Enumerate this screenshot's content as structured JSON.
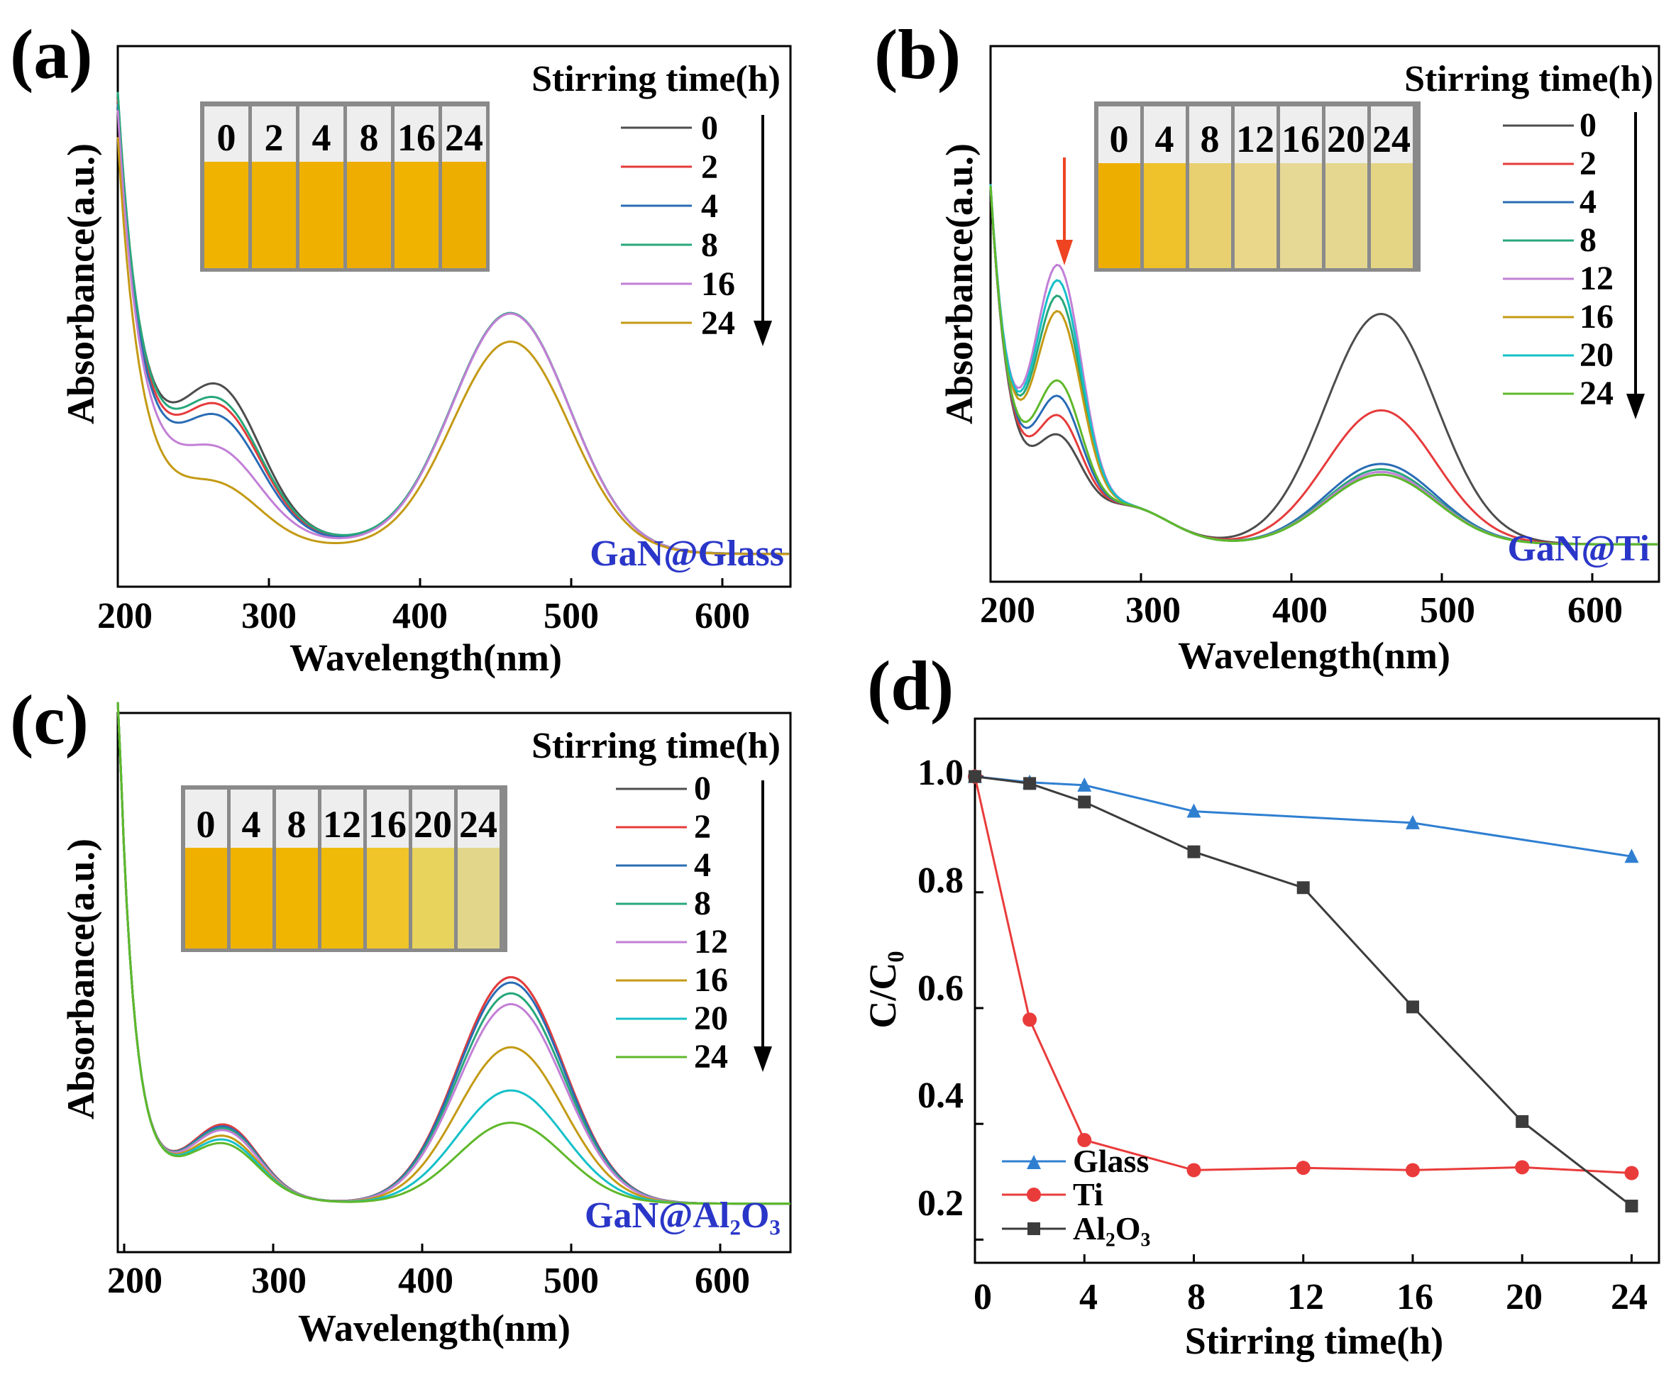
{
  "chart_data": [
    {
      "id": "a",
      "type": "line",
      "panel_label": "(a)",
      "xlabel": "Wavelength(nm)",
      "ylabel": "Absorbance(a.u.)",
      "xlim": [
        200,
        645
      ],
      "xticks": [
        "200",
        "300",
        "400",
        "500",
        "600"
      ],
      "legend_title": "Stirring time(h)",
      "sample_label": "GaN@Glass",
      "vial_labels": [
        "0",
        "2",
        "4",
        "8",
        "16",
        "24"
      ],
      "vial_colors": [
        "#f0b400",
        "#efb200",
        "#f0b000",
        "#eead00",
        "#efb300",
        "#eeae00"
      ],
      "series": [
        {
          "name": "0",
          "color": "#4d4d4d",
          "shoulder": 0.43,
          "trough": 0.185,
          "peak": 0.5
        },
        {
          "name": "2",
          "color": "#e63b3b",
          "shoulder": 0.37,
          "trough": 0.175,
          "peak": 0.5
        },
        {
          "name": "4",
          "color": "#2a6cb5",
          "shoulder": 0.34,
          "trough": 0.165,
          "peak": 0.5
        },
        {
          "name": "8",
          "color": "#27a77a",
          "shoulder": 0.38,
          "trough": 0.19,
          "peak": 0.5
        },
        {
          "name": "16",
          "color": "#c27fd6",
          "shoulder": 0.24,
          "trough": 0.155,
          "peak": 0.5
        },
        {
          "name": "24",
          "color": "#c49a14",
          "shoulder": 0.16,
          "trough": 0.1,
          "peak": 0.45
        }
      ]
    },
    {
      "id": "b",
      "type": "line",
      "panel_label": "(b)",
      "xlabel": "Wavelength(nm)",
      "ylabel": "Absorbance(a.u.)",
      "xlim": [
        200,
        645
      ],
      "xticks": [
        "200",
        "300",
        "400",
        "500",
        "600"
      ],
      "legend_title": "Stirring time(h)",
      "sample_label": "GaN@Ti",
      "vial_labels": [
        "0",
        "4",
        "8",
        "12",
        "16",
        "20",
        "24"
      ],
      "vial_colors": [
        "#eeae00",
        "#efc12a",
        "#e8d070",
        "#ead78a",
        "#e6d895",
        "#e5d78f",
        "#e4d585"
      ],
      "series": [
        {
          "name": "0",
          "color": "#4d4d4d",
          "uv": 0.22,
          "peak": 0.43
        },
        {
          "name": "2",
          "color": "#e63b3b",
          "uv": 0.27,
          "peak": 0.25
        },
        {
          "name": "4",
          "color": "#2a6cb5",
          "uv": 0.32,
          "peak": 0.15
        },
        {
          "name": "8",
          "color": "#27a77a",
          "uv": 0.58,
          "peak": 0.14
        },
        {
          "name": "12",
          "color": "#c27fd6",
          "uv": 0.66,
          "peak": 0.135
        },
        {
          "name": "16",
          "color": "#c49a14",
          "uv": 0.54,
          "peak": 0.13
        },
        {
          "name": "20",
          "color": "#14c0c8",
          "uv": 0.62,
          "peak": 0.13
        },
        {
          "name": "24",
          "color": "#5fb82a",
          "uv": 0.36,
          "peak": 0.13
        }
      ]
    },
    {
      "id": "c",
      "type": "line",
      "panel_label": "(c)",
      "xlabel": "Wavelength(nm)",
      "ylabel": "Absorbance(a.u.)",
      "xlim": [
        195,
        645
      ],
      "xticks": [
        "200",
        "300",
        "400",
        "500",
        "600"
      ],
      "legend_title": "Stirring time(h)",
      "sample_label": "GaN@Al₂O₃",
      "vial_labels": [
        "0",
        "4",
        "8",
        "12",
        "16",
        "20",
        "24"
      ],
      "vial_colors": [
        "#efb000",
        "#f0b300",
        "#f0b500",
        "#f0ba08",
        "#f0c52a",
        "#e8d35c",
        "#e2d68a"
      ],
      "series": [
        {
          "name": "0",
          "color": "#4d4d4d",
          "peak": 0.42,
          "bump": 0.15
        },
        {
          "name": "2",
          "color": "#e63b3b",
          "peak": 0.42,
          "bump": 0.15
        },
        {
          "name": "4",
          "color": "#2a6cb5",
          "peak": 0.41,
          "bump": 0.145
        },
        {
          "name": "8",
          "color": "#27a77a",
          "peak": 0.39,
          "bump": 0.14
        },
        {
          "name": "12",
          "color": "#c27fd6",
          "peak": 0.37,
          "bump": 0.135
        },
        {
          "name": "16",
          "color": "#c49a14",
          "peak": 0.29,
          "bump": 0.12
        },
        {
          "name": "20",
          "color": "#14c0c8",
          "peak": 0.21,
          "bump": 0.11
        },
        {
          "name": "24",
          "color": "#5fb82a",
          "peak": 0.15,
          "bump": 0.1
        }
      ]
    },
    {
      "id": "d",
      "type": "line",
      "panel_label": "(d)",
      "xlabel": "Stirring time(h)",
      "ylabel": "C/C₀",
      "xlim": [
        0,
        25
      ],
      "ylim": [
        0.16,
        1.1
      ],
      "xticks": [
        "0",
        "4",
        "8",
        "12",
        "16",
        "20",
        "24"
      ],
      "yticks": [
        "0.2",
        "0.4",
        "0.6",
        "0.8",
        "1.0"
      ],
      "series": [
        {
          "name": "Glass",
          "color": "#2f7fd1",
          "marker": "triangle",
          "x": [
            0,
            2,
            4,
            8,
            16,
            24
          ],
          "y": [
            1.0,
            0.99,
            0.985,
            0.94,
            0.92,
            0.862
          ]
        },
        {
          "name": "Ti",
          "color": "#ea3b3b",
          "marker": "circle",
          "x": [
            0,
            2,
            4,
            8,
            12,
            16,
            20,
            24
          ],
          "y": [
            1.0,
            0.58,
            0.372,
            0.32,
            0.324,
            0.32,
            0.325,
            0.315
          ]
        },
        {
          "name": "Al₂O₃",
          "color": "#3c3c3c",
          "marker": "square",
          "x": [
            0,
            2,
            4,
            8,
            12,
            16,
            20,
            24
          ],
          "y": [
            1.0,
            0.988,
            0.956,
            0.87,
            0.808,
            0.602,
            0.404,
            0.258
          ]
        }
      ]
    }
  ]
}
